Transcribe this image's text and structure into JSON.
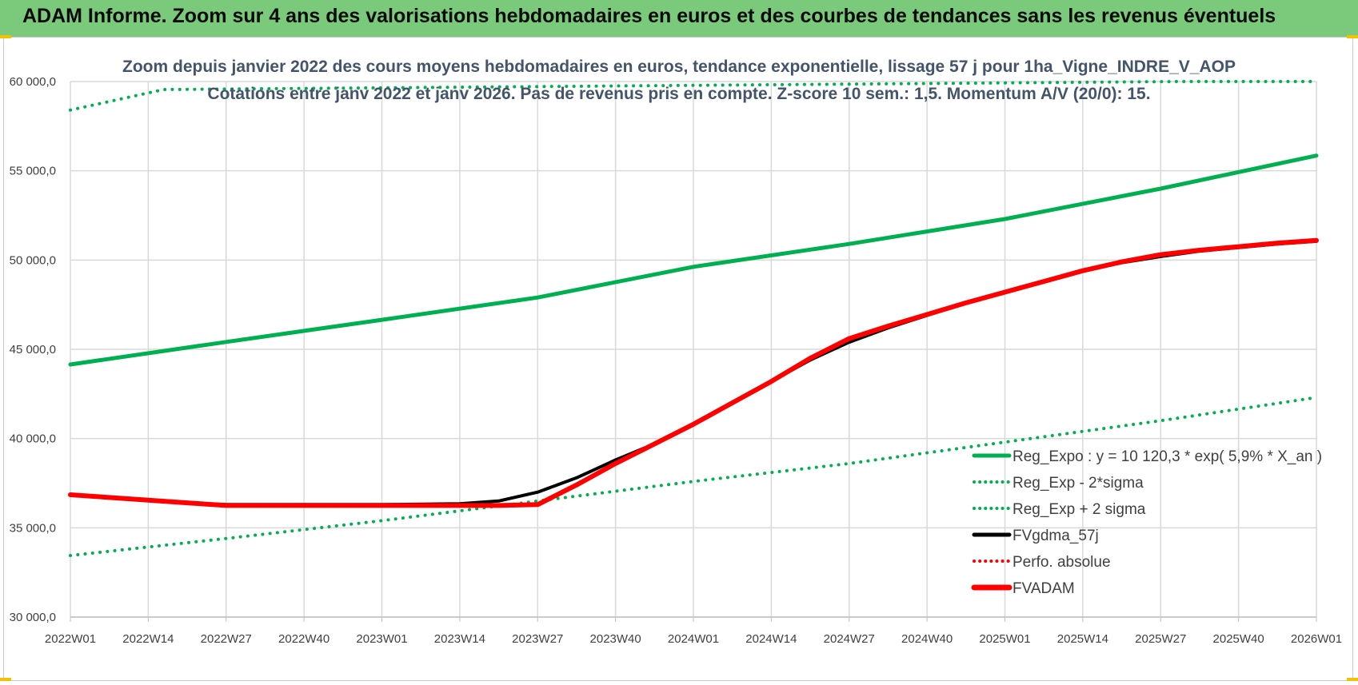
{
  "banner": {
    "title": "ADAM Informe. Zoom sur 4 ans des valorisations hebdomadaires en euros et des courbes de tendances sans les revenus éventuels"
  },
  "colors": {
    "banner_bg": "#7bc97b",
    "green": "#00b050",
    "black": "#000000",
    "red": "#ff0000",
    "grid": "#d9d9d9",
    "title": "#44546a"
  },
  "chart_data": {
    "type": "line",
    "title": "Zoom depuis janvier 2022 des cours moyens hebdomadaires en euros, tendance exponentielle, lissage 57 j pour 1ha_Vigne_INDRE_V_AOP",
    "subtitle": "Cotations entre janv 2022 et janv 2026. Pas de revenus pris en compte. Z-score 10 sem.: 1,5. Momentum A/V (20/0): 15.",
    "xlabel": "",
    "ylabel": "",
    "ylim": [
      30000,
      60000
    ],
    "grid": true,
    "legend_position": "bottom-right",
    "y_ticks": [
      30000,
      35000,
      40000,
      45000,
      50000,
      55000,
      60000
    ],
    "y_tick_labels": [
      "30 000,0",
      "35 000,0",
      "40 000,0",
      "45 000,0",
      "50 000,0",
      "55 000,0",
      "60 000,0"
    ],
    "x_tick_labels": [
      "2022W01",
      "2022W14",
      "2022W27",
      "2022W40",
      "2023W01",
      "2023W14",
      "2023W27",
      "2023W40",
      "2024W01",
      "2024W14",
      "2024W27",
      "2024W40",
      "2025W01",
      "2025W14",
      "2025W27",
      "2025W40",
      "2026W01"
    ],
    "series": [
      {
        "name": "Reg_Expo : y = 10 120,3 * exp( 5,9% * X_an )",
        "color": "#00b050",
        "style": "solid",
        "width": 5,
        "x": [
          0,
          2,
          4,
          6,
          8,
          10,
          12,
          14,
          16
        ],
        "values": [
          44150,
          45410,
          46650,
          47900,
          49620,
          50900,
          52300,
          54000,
          55850
        ]
      },
      {
        "name": "Reg_Exp - 2*sigma",
        "color": "#00b050",
        "style": "dotted",
        "width": 4,
        "x": [
          0,
          2,
          4,
          6,
          8,
          10,
          12,
          14,
          16
        ],
        "values": [
          33450,
          34400,
          35400,
          36500,
          37600,
          38600,
          39800,
          41000,
          42300
        ]
      },
      {
        "name": "Reg_Exp + 2 sigma",
        "color": "#00b050",
        "style": "dotted",
        "width": 4,
        "x": [
          0,
          1.2,
          14.2,
          16
        ],
        "values": [
          58400,
          59550,
          60000,
          60000
        ]
      },
      {
        "name": "FVgdma_57j",
        "color": "#000000",
        "style": "solid",
        "width": 4,
        "x": [
          0,
          0.5,
          1,
          1.5,
          2,
          3,
          4,
          5,
          5.5,
          6,
          6.5,
          7,
          7.5,
          8,
          8.5,
          9,
          9.5,
          10,
          10.5,
          11,
          11.5,
          12,
          12.5,
          13,
          13.5,
          14,
          14.5,
          15,
          15.5,
          16
        ],
        "values": [
          36850,
          36700,
          36550,
          36400,
          36300,
          36300,
          36300,
          36350,
          36500,
          37000,
          37800,
          38800,
          39700,
          40800,
          42000,
          43200,
          44400,
          45400,
          46200,
          46900,
          47600,
          48200,
          48800,
          49400,
          49850,
          50200,
          50500,
          50700,
          50900,
          51050
        ]
      },
      {
        "name": "Perfo. absolue",
        "color": "#ff0000",
        "style": "dotted",
        "width": 3,
        "x": [],
        "values": []
      },
      {
        "name": "FVADAM",
        "color": "#ff0000",
        "style": "solid",
        "width": 6,
        "x": [
          0,
          0.5,
          1,
          1.5,
          2,
          3,
          4,
          5,
          5.5,
          6,
          6.5,
          7,
          7.5,
          8,
          8.5,
          9,
          9.5,
          10,
          10.5,
          11,
          11.5,
          12,
          12.5,
          13,
          13.5,
          14,
          14.5,
          15,
          15.5,
          16
        ],
        "values": [
          36850,
          36700,
          36550,
          36400,
          36250,
          36250,
          36250,
          36250,
          36250,
          36300,
          37400,
          38600,
          39700,
          40800,
          42000,
          43200,
          44500,
          45600,
          46300,
          46950,
          47600,
          48200,
          48800,
          49400,
          49900,
          50300,
          50550,
          50750,
          50950,
          51100
        ]
      }
    ]
  }
}
